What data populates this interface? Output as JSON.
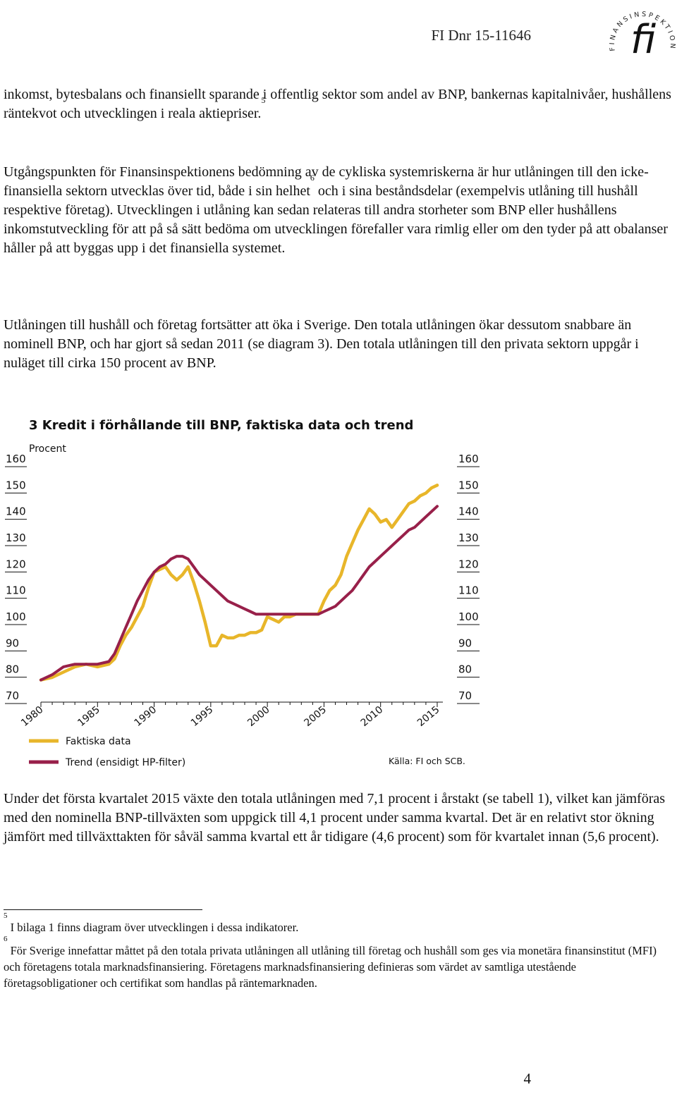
{
  "header": {
    "reference": "FI Dnr 15-11646",
    "logo_text": "FINANSINSPEKTIONEN"
  },
  "paragraphs": {
    "p1": "inkomst, bytesbalans och finansiellt sparande i offentlig sektor som andel av BNP, bankernas kapitalnivåer, hushållens räntekvot och utvecklingen i reala aktiepriser.",
    "p1_ref": "5",
    "p2a": "Utgångspunkten för Finansinspektionens bedömning av de cykliska systemriskerna är hur utlåningen till den icke-finansiella sektorn utvecklas över tid, både i sin helhet",
    "p2_ref": "6",
    "p2b": " och i sina beståndsdelar (exempelvis utlåning till hushåll respektive företag). Utvecklingen i utlåning kan sedan relateras till andra storheter som BNP eller hushållens inkomstutveckling för att på så sätt bedöma om utvecklingen förefaller vara rimlig eller om den tyder på att obalanser håller på att byggas upp i det finansiella systemet.",
    "p3": "Utlåningen till hushåll och företag fortsätter att öka i Sverige. Den totala utlåningen ökar dessutom snabbare än nominell BNP, och har gjort så sedan 2011 (se diagram 3). Den totala utlåningen till den privata sektorn uppgår i nuläget till cirka 150 procent av BNP.",
    "p4": "Under det första kvartalet 2015 växte den totala utlåningen med 7,1 procent i årstakt (se tabell 1), vilket kan jämföras med den nominella BNP-tillväxten som uppgick till 4,1 procent under samma kvartal. Det är en relativt stor ökning jämfört med tillväxttakten för såväl samma kvartal ett år tidigare (4,6 procent) som för kvartalet innan (5,6 procent)."
  },
  "chart_data": {
    "type": "line",
    "title": "3 Kredit i förhållande till BNP, faktiska data och trend",
    "ylabel": "Procent",
    "source": "Källa: FI och SCB.",
    "ylim": [
      70,
      160
    ],
    "xlim": [
      1980,
      2015.5
    ],
    "yticks": [
      "70",
      "80",
      "90",
      "100",
      "110",
      "120",
      "130",
      "140",
      "150",
      "160"
    ],
    "xticks": [
      "1980",
      "1985",
      "1990",
      "1995",
      "2000",
      "2005",
      "2010",
      "2015"
    ],
    "grid": false,
    "legend_position": "bottom-left",
    "colors": {
      "actual": "#e8b62a",
      "trend": "#98204a"
    },
    "series": [
      {
        "name": "Faktiska data",
        "x": [
          1980,
          1981,
          1982,
          1983,
          1984,
          1985,
          1986,
          1986.5,
          1987,
          1987.5,
          1988,
          1988.5,
          1989,
          1989.5,
          1990,
          1990.5,
          1991,
          1991.5,
          1992,
          1992.5,
          1993,
          1993.5,
          1994,
          1994.5,
          1995,
          1995.5,
          1996,
          1996.5,
          1997,
          1997.5,
          1998,
          1998.5,
          1999,
          1999.5,
          2000,
          2000.5,
          2001,
          2001.5,
          2002,
          2002.5,
          2003,
          2003.5,
          2004,
          2004.5,
          2005,
          2005.5,
          2006,
          2006.5,
          2007,
          2007.5,
          2008,
          2008.5,
          2009,
          2009.5,
          2010,
          2010.5,
          2011,
          2011.5,
          2012,
          2012.5,
          2013,
          2013.5,
          2014,
          2014.5,
          2015
        ],
        "values": [
          76,
          77,
          79,
          81,
          82,
          81,
          82,
          84,
          89,
          93,
          96,
          100,
          104,
          111,
          117,
          118,
          119,
          116,
          114,
          116,
          119,
          113,
          106,
          98,
          89,
          89,
          93,
          92,
          92,
          93,
          93,
          94,
          94,
          95,
          100,
          99,
          98,
          100,
          100,
          101,
          101,
          101,
          101,
          101,
          106,
          110,
          112,
          116,
          123,
          128,
          133,
          137,
          141,
          139,
          136,
          137,
          134,
          137,
          140,
          143,
          144,
          146,
          147,
          149,
          150
        ]
      },
      {
        "name": "Trend (ensidigt HP-filter)",
        "x": [
          1980,
          1981,
          1982,
          1983,
          1984,
          1985,
          1986,
          1986.5,
          1987,
          1987.5,
          1988,
          1988.5,
          1989,
          1989.5,
          1990,
          1990.5,
          1991,
          1991.5,
          1992,
          1992.5,
          1993,
          1993.5,
          1994,
          1994.5,
          1995,
          1995.5,
          1996,
          1996.5,
          1997,
          1997.5,
          1998,
          1998.5,
          1999,
          1999.5,
          2000,
          2000.5,
          2001,
          2001.5,
          2002,
          2002.5,
          2003,
          2003.5,
          2004,
          2004.5,
          2005,
          2005.5,
          2006,
          2006.5,
          2007,
          2007.5,
          2008,
          2008.5,
          2009,
          2009.5,
          2010,
          2010.5,
          2011,
          2011.5,
          2012,
          2012.5,
          2013,
          2013.5,
          2014,
          2014.5,
          2015
        ],
        "values": [
          76,
          78,
          81,
          82,
          82,
          82,
          83,
          86,
          91,
          96,
          101,
          106,
          110,
          114,
          117,
          119,
          120,
          122,
          123,
          123,
          122,
          119,
          116,
          114,
          112,
          110,
          108,
          106,
          105,
          104,
          103,
          102,
          101,
          101,
          101,
          101,
          101,
          101,
          101,
          101,
          101,
          101,
          101,
          101,
          102,
          103,
          104,
          106,
          108,
          110,
          113,
          116,
          119,
          121,
          123,
          125,
          127,
          129,
          131,
          133,
          134,
          136,
          138,
          140,
          142
        ]
      }
    ]
  },
  "footnotes": [
    {
      "ref": "5",
      "text": "I bilaga 1 finns diagram över utvecklingen i dessa indikatorer."
    },
    {
      "ref": "6",
      "text": "För Sverige innefattar måttet på den totala privata utlåningen all utlåning till företag och hushåll som ges via monetära finansinstitut (MFI) och företagens totala marknadsfinansiering. Företagens marknadsfinansiering definieras som värdet av samtliga utestående företagsobligationer och certifikat som handlas på räntemarknaden."
    }
  ],
  "page_number": "4"
}
